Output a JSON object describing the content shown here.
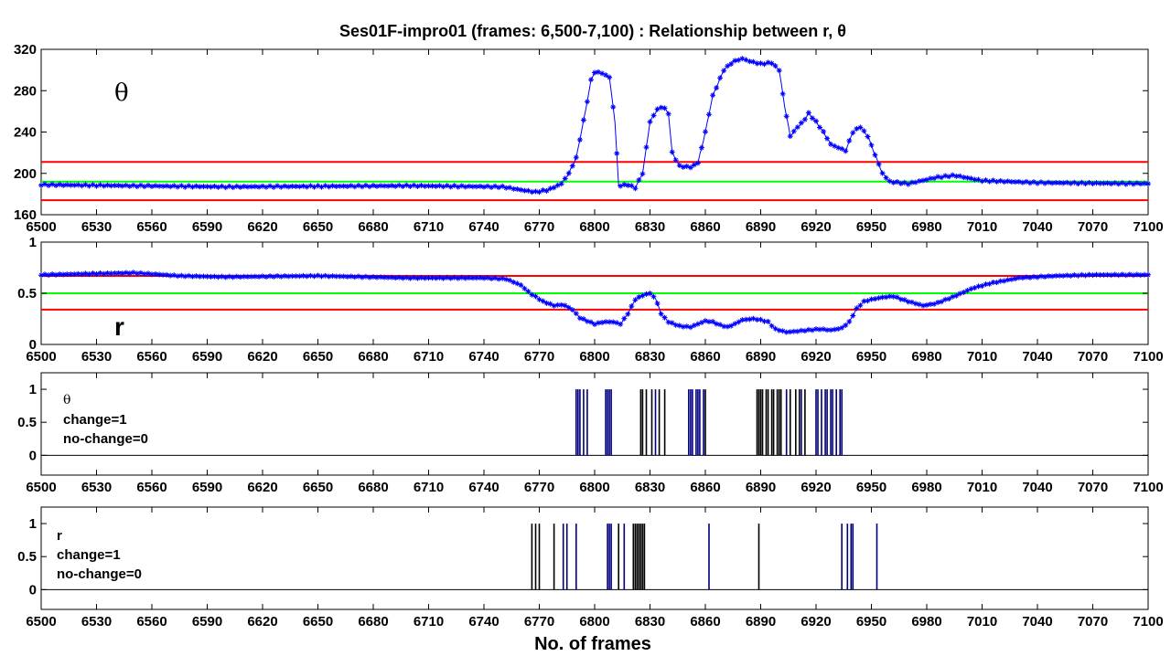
{
  "chart_data": [
    {
      "type": "line",
      "title": "Ses01F-impro01 (frames: 6,500-7,100) : Relationship between r, θ",
      "annotation": "θ",
      "xlim": [
        6500,
        7100
      ],
      "ylim": [
        160,
        320
      ],
      "xticks": [
        6500,
        6530,
        6560,
        6590,
        6620,
        6650,
        6680,
        6710,
        6740,
        6770,
        6800,
        6830,
        6860,
        6890,
        6920,
        6950,
        6980,
        7010,
        7040,
        7070,
        7100
      ],
      "yticks": [
        160,
        200,
        240,
        280,
        320
      ],
      "grid": false,
      "series_color": "#0000ff",
      "hlines": [
        {
          "value": 211,
          "color": "#ff0000"
        },
        {
          "value": 192,
          "color": "#00ff00"
        },
        {
          "value": 174,
          "color": "#ff0000"
        }
      ],
      "keypoints": [
        [
          6500,
          189
        ],
        [
          6600,
          187
        ],
        [
          6700,
          188
        ],
        [
          6750,
          187
        ],
        [
          6760,
          184
        ],
        [
          6768,
          182
        ],
        [
          6775,
          184
        ],
        [
          6782,
          190
        ],
        [
          6786,
          200
        ],
        [
          6790,
          215
        ],
        [
          6795,
          260
        ],
        [
          6798,
          290
        ],
        [
          6800,
          298
        ],
        [
          6804,
          297
        ],
        [
          6808,
          293
        ],
        [
          6811,
          250
        ],
        [
          6813,
          188
        ],
        [
          6818,
          189
        ],
        [
          6822,
          186
        ],
        [
          6826,
          200
        ],
        [
          6830,
          250
        ],
        [
          6834,
          262
        ],
        [
          6837,
          265
        ],
        [
          6840,
          258
        ],
        [
          6842,
          220
        ],
        [
          6846,
          207
        ],
        [
          6852,
          206
        ],
        [
          6856,
          210
        ],
        [
          6860,
          240
        ],
        [
          6864,
          275
        ],
        [
          6870,
          300
        ],
        [
          6875,
          308
        ],
        [
          6880,
          311
        ],
        [
          6885,
          308
        ],
        [
          6890,
          306
        ],
        [
          6896,
          307
        ],
        [
          6900,
          300
        ],
        [
          6903,
          265
        ],
        [
          6906,
          236
        ],
        [
          6910,
          245
        ],
        [
          6913,
          250
        ],
        [
          6916,
          258
        ],
        [
          6920,
          250
        ],
        [
          6924,
          240
        ],
        [
          6928,
          228
        ],
        [
          6932,
          225
        ],
        [
          6936,
          222
        ],
        [
          6940,
          240
        ],
        [
          6944,
          245
        ],
        [
          6948,
          236
        ],
        [
          6952,
          218
        ],
        [
          6956,
          200
        ],
        [
          6960,
          192
        ],
        [
          6970,
          190
        ],
        [
          6985,
          196
        ],
        [
          6995,
          198
        ],
        [
          7010,
          193
        ],
        [
          7040,
          191
        ],
        [
          7100,
          190
        ]
      ]
    },
    {
      "type": "line",
      "annotation": "r",
      "xlim": [
        6500,
        7100
      ],
      "ylim": [
        0,
        1
      ],
      "xticks": [
        6500,
        6530,
        6560,
        6590,
        6620,
        6650,
        6680,
        6710,
        6740,
        6770,
        6800,
        6830,
        6860,
        6890,
        6920,
        6950,
        6980,
        7010,
        7040,
        7070,
        7100
      ],
      "yticks": [
        0,
        0.5,
        1
      ],
      "grid": false,
      "series_color": "#0000ff",
      "hlines": [
        {
          "value": 0.67,
          "color": "#ff0000"
        },
        {
          "value": 0.5,
          "color": "#00ff00"
        },
        {
          "value": 0.34,
          "color": "#ff0000"
        }
      ],
      "keypoints": [
        [
          6500,
          0.68
        ],
        [
          6525,
          0.69
        ],
        [
          6550,
          0.7
        ],
        [
          6575,
          0.67
        ],
        [
          6600,
          0.66
        ],
        [
          6650,
          0.67
        ],
        [
          6700,
          0.65
        ],
        [
          6740,
          0.65
        ],
        [
          6752,
          0.64
        ],
        [
          6760,
          0.58
        ],
        [
          6765,
          0.5
        ],
        [
          6772,
          0.42
        ],
        [
          6778,
          0.38
        ],
        [
          6783,
          0.39
        ],
        [
          6788,
          0.34
        ],
        [
          6792,
          0.26
        ],
        [
          6796,
          0.23
        ],
        [
          6800,
          0.2
        ],
        [
          6805,
          0.22
        ],
        [
          6810,
          0.22
        ],
        [
          6814,
          0.2
        ],
        [
          6818,
          0.3
        ],
        [
          6822,
          0.44
        ],
        [
          6826,
          0.48
        ],
        [
          6830,
          0.5
        ],
        [
          6833,
          0.45
        ],
        [
          6836,
          0.3
        ],
        [
          6840,
          0.22
        ],
        [
          6846,
          0.18
        ],
        [
          6852,
          0.17
        ],
        [
          6856,
          0.2
        ],
        [
          6860,
          0.23
        ],
        [
          6864,
          0.22
        ],
        [
          6868,
          0.19
        ],
        [
          6872,
          0.17
        ],
        [
          6876,
          0.2
        ],
        [
          6880,
          0.24
        ],
        [
          6886,
          0.25
        ],
        [
          6890,
          0.24
        ],
        [
          6894,
          0.22
        ],
        [
          6898,
          0.15
        ],
        [
          6904,
          0.12
        ],
        [
          6910,
          0.13
        ],
        [
          6916,
          0.14
        ],
        [
          6922,
          0.15
        ],
        [
          6928,
          0.14
        ],
        [
          6934,
          0.16
        ],
        [
          6938,
          0.22
        ],
        [
          6942,
          0.35
        ],
        [
          6946,
          0.42
        ],
        [
          6950,
          0.44
        ],
        [
          6956,
          0.46
        ],
        [
          6962,
          0.47
        ],
        [
          6970,
          0.42
        ],
        [
          6978,
          0.38
        ],
        [
          6985,
          0.4
        ],
        [
          6995,
          0.47
        ],
        [
          7005,
          0.55
        ],
        [
          7015,
          0.6
        ],
        [
          7030,
          0.65
        ],
        [
          7050,
          0.67
        ],
        [
          7070,
          0.68
        ],
        [
          7085,
          0.68
        ],
        [
          7100,
          0.68
        ]
      ]
    },
    {
      "type": "bar",
      "annotation_lines": [
        "θ",
        "change=1",
        "no-change=0"
      ],
      "xlim": [
        6500,
        7100
      ],
      "ylim": [
        -0.3,
        1.25
      ],
      "xticks": [
        6500,
        6530,
        6560,
        6590,
        6620,
        6650,
        6680,
        6710,
        6740,
        6770,
        6800,
        6830,
        6860,
        6890,
        6920,
        6950,
        6980,
        7010,
        7040,
        7070,
        7100
      ],
      "yticks": [
        0,
        0.5,
        1
      ],
      "grid": false,
      "bar_value": 1,
      "bars": [
        {
          "x": 6790,
          "color": "#000080"
        },
        {
          "x": 6791,
          "color": "#000080"
        },
        {
          "x": 6792,
          "color": "#000080"
        },
        {
          "x": 6794,
          "color": "#000080"
        },
        {
          "x": 6796,
          "color": "#000080"
        },
        {
          "x": 6806,
          "color": "#000080"
        },
        {
          "x": 6807,
          "color": "#000080"
        },
        {
          "x": 6808,
          "color": "#000080"
        },
        {
          "x": 6809,
          "color": "#000080"
        },
        {
          "x": 6825,
          "color": "#000000"
        },
        {
          "x": 6826,
          "color": "#000000"
        },
        {
          "x": 6828,
          "color": "#000000"
        },
        {
          "x": 6831,
          "color": "#000000"
        },
        {
          "x": 6833,
          "color": "#000080"
        },
        {
          "x": 6835,
          "color": "#000000"
        },
        {
          "x": 6838,
          "color": "#000000"
        },
        {
          "x": 6851,
          "color": "#000080"
        },
        {
          "x": 6852,
          "color": "#000080"
        },
        {
          "x": 6853,
          "color": "#000080"
        },
        {
          "x": 6855,
          "color": "#000080"
        },
        {
          "x": 6856,
          "color": "#000080"
        },
        {
          "x": 6857,
          "color": "#000080"
        },
        {
          "x": 6859,
          "color": "#000080"
        },
        {
          "x": 6860,
          "color": "#000000"
        },
        {
          "x": 6888,
          "color": "#000000"
        },
        {
          "x": 6889,
          "color": "#000000"
        },
        {
          "x": 6890,
          "color": "#000000"
        },
        {
          "x": 6891,
          "color": "#000000"
        },
        {
          "x": 6893,
          "color": "#000000"
        },
        {
          "x": 6894,
          "color": "#000000"
        },
        {
          "x": 6896,
          "color": "#000000"
        },
        {
          "x": 6897,
          "color": "#000000"
        },
        {
          "x": 6899,
          "color": "#000000"
        },
        {
          "x": 6900,
          "color": "#000000"
        },
        {
          "x": 6901,
          "color": "#000000"
        },
        {
          "x": 6904,
          "color": "#000080"
        },
        {
          "x": 6906,
          "color": "#000000"
        },
        {
          "x": 6909,
          "color": "#000000"
        },
        {
          "x": 6911,
          "color": "#000000"
        },
        {
          "x": 6912,
          "color": "#000080"
        },
        {
          "x": 6914,
          "color": "#000000"
        },
        {
          "x": 6920,
          "color": "#000080"
        },
        {
          "x": 6921,
          "color": "#000080"
        },
        {
          "x": 6923,
          "color": "#000080"
        },
        {
          "x": 6925,
          "color": "#000080"
        },
        {
          "x": 6926,
          "color": "#000080"
        },
        {
          "x": 6928,
          "color": "#000080"
        },
        {
          "x": 6929,
          "color": "#000080"
        },
        {
          "x": 6931,
          "color": "#000080"
        },
        {
          "x": 6933,
          "color": "#000080"
        },
        {
          "x": 6934,
          "color": "#000080"
        }
      ]
    },
    {
      "type": "bar",
      "annotation_lines": [
        "r",
        "change=1",
        "no-change=0"
      ],
      "xlabel": "No. of frames",
      "xlim": [
        6500,
        7100
      ],
      "ylim": [
        -0.3,
        1.25
      ],
      "xticks": [
        6500,
        6530,
        6560,
        6590,
        6620,
        6650,
        6680,
        6710,
        6740,
        6770,
        6800,
        6830,
        6860,
        6890,
        6920,
        6950,
        6980,
        7010,
        7040,
        7070,
        7100
      ],
      "yticks": [
        0,
        0.5,
        1
      ],
      "grid": false,
      "bar_value": 1,
      "bars": [
        {
          "x": 6766,
          "color": "#000000"
        },
        {
          "x": 6768,
          "color": "#000000"
        },
        {
          "x": 6770,
          "color": "#000000"
        },
        {
          "x": 6778,
          "color": "#000000"
        },
        {
          "x": 6783,
          "color": "#000080"
        },
        {
          "x": 6785,
          "color": "#000080"
        },
        {
          "x": 6790,
          "color": "#000080"
        },
        {
          "x": 6807,
          "color": "#000080"
        },
        {
          "x": 6808,
          "color": "#000080"
        },
        {
          "x": 6809,
          "color": "#000080"
        },
        {
          "x": 6813,
          "color": "#000000"
        },
        {
          "x": 6816,
          "color": "#000080"
        },
        {
          "x": 6821,
          "color": "#000000"
        },
        {
          "x": 6822,
          "color": "#000000"
        },
        {
          "x": 6823,
          "color": "#000000"
        },
        {
          "x": 6824,
          "color": "#000000"
        },
        {
          "x": 6825,
          "color": "#000000"
        },
        {
          "x": 6826,
          "color": "#000000"
        },
        {
          "x": 6827,
          "color": "#000000"
        },
        {
          "x": 6862,
          "color": "#000080"
        },
        {
          "x": 6889,
          "color": "#000000"
        },
        {
          "x": 6934,
          "color": "#000080"
        },
        {
          "x": 6937,
          "color": "#000080"
        },
        {
          "x": 6939,
          "color": "#000080"
        },
        {
          "x": 6940,
          "color": "#000080"
        },
        {
          "x": 6953,
          "color": "#000080"
        }
      ]
    }
  ]
}
